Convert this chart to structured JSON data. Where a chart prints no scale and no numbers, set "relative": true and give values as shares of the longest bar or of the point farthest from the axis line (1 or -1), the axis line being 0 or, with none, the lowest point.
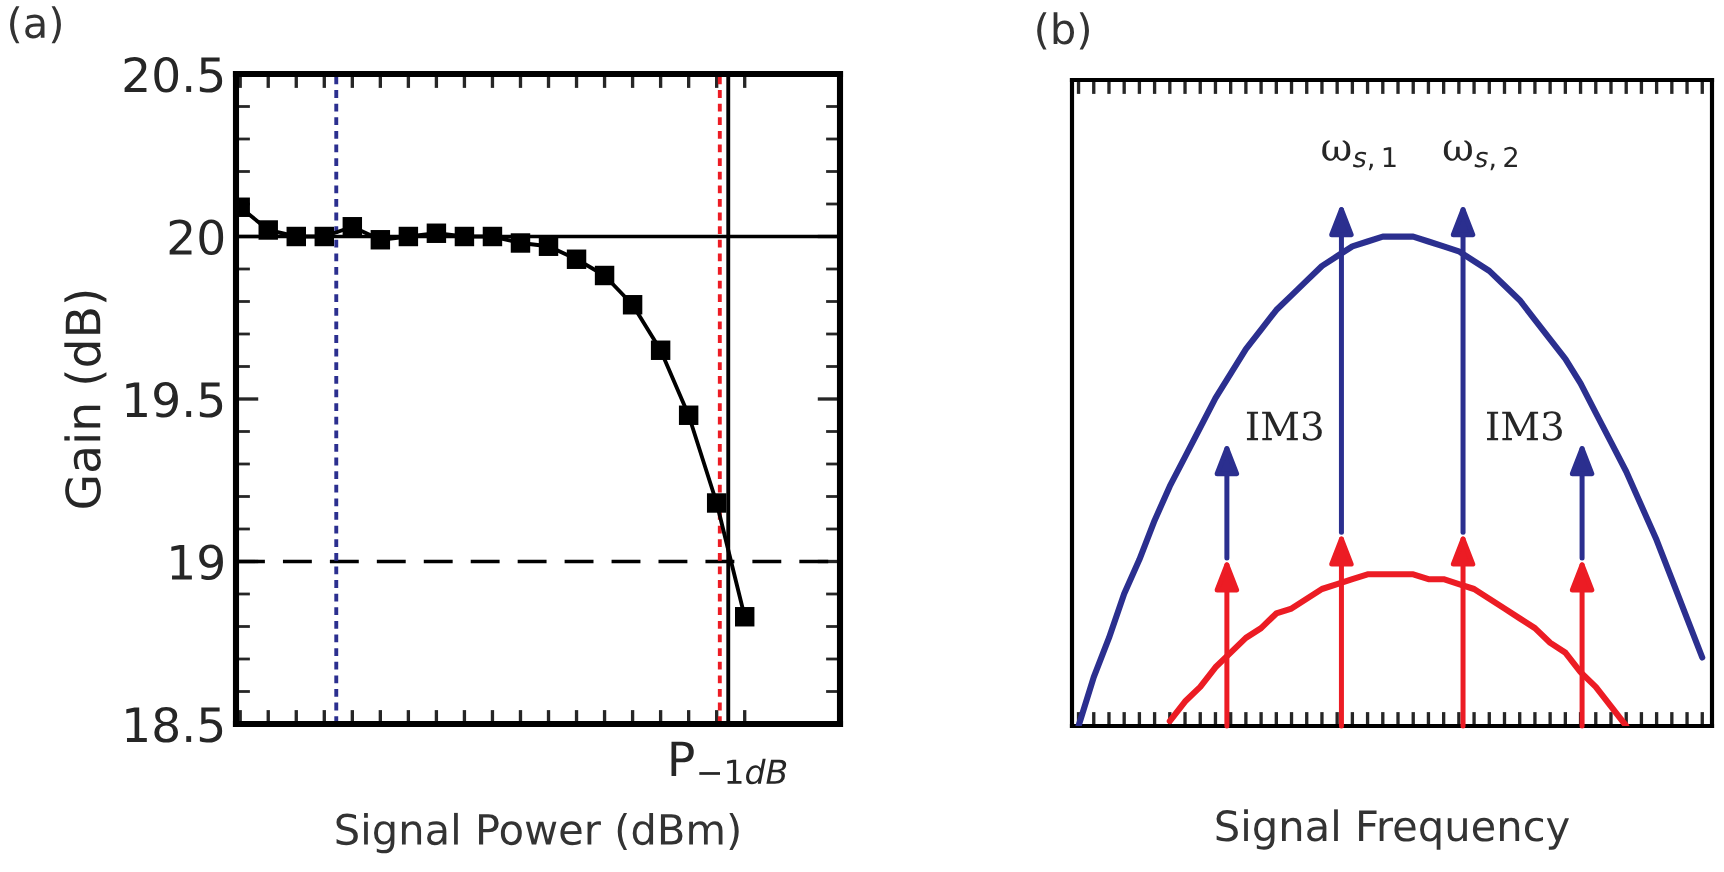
{
  "chart_data": [
    {
      "type": "line",
      "title": "(a)",
      "xlabel": "Signal Power (dBm)",
      "ylabel": "Gain (dB)",
      "marker": "square",
      "grid": false,
      "tick_labels": "y",
      "categories": [
        null,
        null,
        null,
        null,
        null,
        null,
        null,
        null,
        null,
        null,
        null,
        null,
        null,
        null,
        null,
        null,
        null,
        null,
        null
      ],
      "series": [
        {
          "color": "#000000",
          "values": [
            20.09,
            20.02,
            20.0,
            20.0,
            20.03,
            19.99,
            20.0,
            20.01,
            20.0,
            20.0,
            19.98,
            19.97,
            19.93,
            19.88,
            19.79,
            19.65,
            19.45,
            19.18,
            18.83
          ]
        }
      ],
      "ylim": [
        18.5,
        20.5
      ],
      "yticks": [
        18.5,
        {
          "value": 18.6,
          "label": null
        },
        {
          "value": 18.7,
          "label": null
        },
        {
          "value": 18.8,
          "label": null
        },
        {
          "value": 18.9,
          "label": null
        },
        19,
        {
          "value": 19.1,
          "label": null
        },
        {
          "value": 19.2,
          "label": null
        },
        {
          "value": 19.3,
          "label": null
        },
        {
          "value": 19.4,
          "label": null
        },
        19.5,
        {
          "value": 19.6,
          "label": null
        },
        {
          "value": 19.7,
          "label": null
        },
        {
          "value": 19.8,
          "label": null
        },
        {
          "value": 19.9,
          "label": null
        },
        20,
        {
          "value": 20.1,
          "label": null
        },
        {
          "value": 20.2,
          "label": null
        },
        {
          "value": 20.3,
          "label": null
        },
        {
          "value": 20.4,
          "label": null
        },
        20.5
      ],
      "ref_lines": [
        {
          "axis": "y",
          "value": 20,
          "color": "#000000",
          "line_style": "solid"
        },
        {
          "axis": "y",
          "value": 19,
          "color": "#000000",
          "line_style": "dashed"
        }
      ],
      "annotations": [
        "P$_{−1dB}$"
      ]
    },
    {
      "type": "line",
      "title": "(b)",
      "xlabel": "Signal Frequency",
      "relative": true,
      "grid": false,
      "tick_labels": false,
      "categories": [
        null,
        null,
        null,
        null,
        null,
        null,
        null,
        null,
        null,
        null,
        null,
        null,
        null,
        null,
        null,
        null,
        null,
        null,
        null,
        null,
        null,
        null,
        null,
        null,
        null,
        null,
        null,
        null,
        null,
        null,
        null,
        null,
        null,
        null,
        null,
        null,
        null,
        null,
        null,
        null,
        null,
        null
      ],
      "series": [
        {
          "color": "#2b2f8f",
          "values": [
            0,
            0.1,
            0.18,
            0.27,
            0.34,
            0.42,
            0.49,
            0.55,
            0.61,
            0.67,
            0.72,
            0.77,
            0.81,
            0.85,
            0.88,
            0.91,
            0.94,
            0.96,
            0.98,
            0.99,
            1,
            1,
            1,
            0.99,
            0.98,
            0.97,
            0.95,
            0.93,
            0.9,
            0.87,
            0.83,
            0.79,
            0.75,
            0.7,
            0.64,
            0.58,
            0.52,
            0.45,
            0.38,
            0.3,
            0.22,
            0.14
          ]
        },
        {
          "color": "#ec1c24",
          "values": [
            null,
            null,
            null,
            null,
            null,
            null,
            0.01,
            0.05,
            0.08,
            0.12,
            0.15,
            0.18,
            0.2,
            0.23,
            0.24,
            0.26,
            0.28,
            0.29,
            0.3,
            0.31,
            0.31,
            0.31,
            0.31,
            0.3,
            0.3,
            0.29,
            0.28,
            0.26,
            0.24,
            0.22,
            0.2,
            0.17,
            0.15,
            0.11,
            0.08,
            0.04,
            0.0,
            null,
            null,
            null,
            null,
            null
          ]
        }
      ],
      "annotations": [
        "ω$_{s,1}$",
        "ω$_{s,2}$",
        "IM3",
        "IM3"
      ]
    }
  ]
}
